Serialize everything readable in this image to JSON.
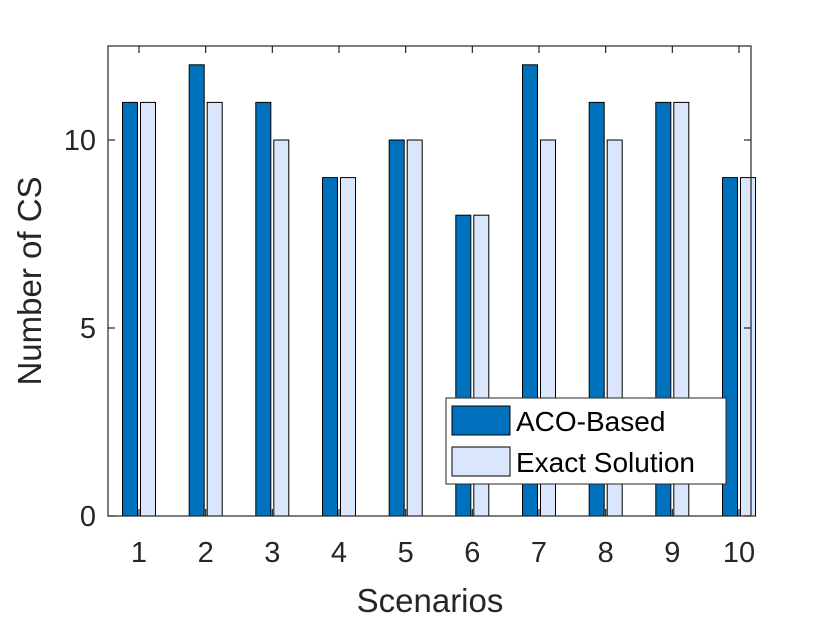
{
  "chart_data": {
    "type": "bar",
    "title": "",
    "xlabel": "Scenarios",
    "ylabel": "Number of CS",
    "categories": [
      "1",
      "2",
      "3",
      "4",
      "5",
      "6",
      "7",
      "8",
      "9",
      "10"
    ],
    "series": [
      {
        "name": "ACO-Based",
        "color": "#0072BD",
        "values": [
          11,
          12,
          11,
          9,
          10,
          8,
          12,
          11,
          11,
          9
        ]
      },
      {
        "name": "Exact Solution",
        "color": "#D9E6FB",
        "values": [
          11,
          11,
          10,
          9,
          10,
          8,
          10,
          10,
          11,
          9
        ]
      }
    ],
    "ylim": [
      0,
      12.5
    ],
    "yticks": [
      0,
      5,
      10
    ],
    "ytick_labels": [
      "0",
      "5",
      "10"
    ],
    "grid": false,
    "legend_position": "bottom-right"
  }
}
